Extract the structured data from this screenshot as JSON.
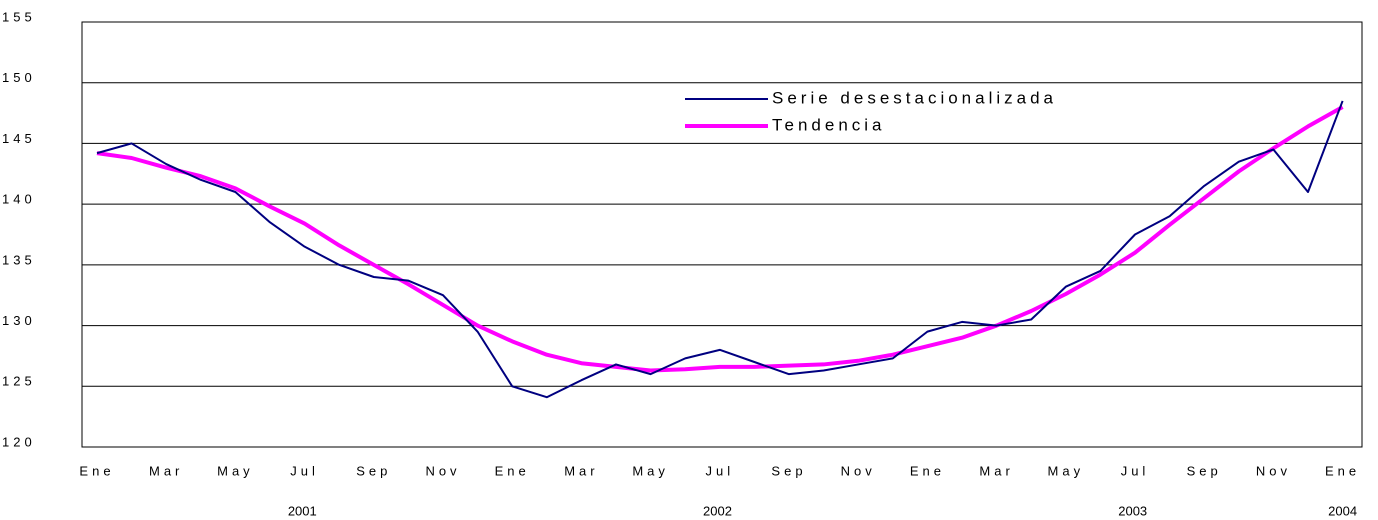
{
  "chart_data": {
    "type": "line",
    "categories": [
      "Ene",
      null,
      "Mar",
      null,
      "May",
      null,
      "Jul",
      null,
      "Sep",
      null,
      "Nov",
      null,
      "Ene",
      null,
      "Mar",
      null,
      "May",
      null,
      "Jul",
      null,
      "Sep",
      null,
      "Nov",
      null,
      "Ene",
      null,
      "Mar",
      null,
      "May",
      null,
      "Jul",
      null,
      "Sep",
      null,
      "Nov",
      null,
      "Ene"
    ],
    "years": [
      "2001",
      "2002",
      "2003",
      "2004"
    ],
    "series": [
      {
        "name": "Serie desestacionalizada",
        "color": "#000080",
        "values": [
          144.2,
          145.0,
          143.3,
          142.0,
          141.0,
          138.5,
          136.5,
          135.0,
          134.0,
          133.7,
          132.5,
          129.5,
          125.0,
          124.1,
          125.5,
          126.8,
          126.0,
          127.3,
          128.0,
          127.0,
          126.0,
          126.3,
          126.8,
          127.3,
          129.5,
          130.3,
          130.0,
          130.5,
          133.2,
          134.5,
          137.5,
          139.0,
          141.5,
          143.5,
          144.5,
          141.0,
          148.5
        ]
      },
      {
        "name": "Tendencia",
        "color": "#ff00ff",
        "values": [
          144.2,
          143.8,
          143.0,
          142.3,
          141.3,
          139.8,
          138.4,
          136.6,
          135.0,
          133.4,
          131.7,
          130.0,
          128.7,
          127.6,
          126.9,
          126.6,
          126.3,
          126.4,
          126.6,
          126.6,
          126.7,
          126.8,
          127.1,
          127.6,
          128.3,
          129.0,
          130.0,
          131.2,
          132.6,
          134.2,
          136.0,
          138.3,
          140.5,
          142.7,
          144.6,
          146.4,
          148.0
        ]
      }
    ],
    "ylim": [
      120,
      155
    ],
    "yticks": [
      120,
      125,
      130,
      135,
      140,
      145,
      150,
      155
    ],
    "grid": true
  }
}
